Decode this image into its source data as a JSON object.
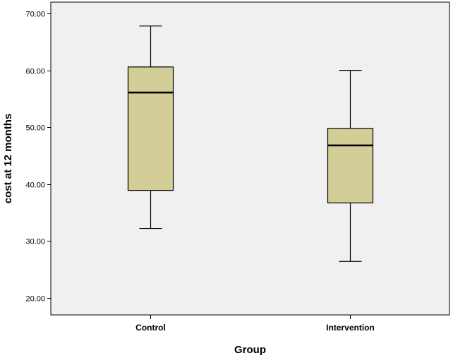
{
  "chart_data": {
    "type": "boxplot",
    "xlabel": "Group",
    "ylabel": "cost at 12 months",
    "ylim": [
      17,
      72
    ],
    "yticks": [
      "20.00",
      "30.00",
      "40.00",
      "50.00",
      "60.00",
      "70.00"
    ],
    "grid": false,
    "categories": [
      "Control",
      "Intervention"
    ],
    "boxes": [
      {
        "category": "Control",
        "min": 32.2,
        "q1": 38.9,
        "median": 56.1,
        "q3": 60.6,
        "max": 67.8
      },
      {
        "category": "Intervention",
        "min": 26.4,
        "q1": 36.7,
        "median": 46.8,
        "q3": 49.8,
        "max": 60.0
      }
    ],
    "colors": {
      "plot_background": "#f0f0f0",
      "box_fill": "#d3ce97",
      "line": "#000000"
    }
  }
}
